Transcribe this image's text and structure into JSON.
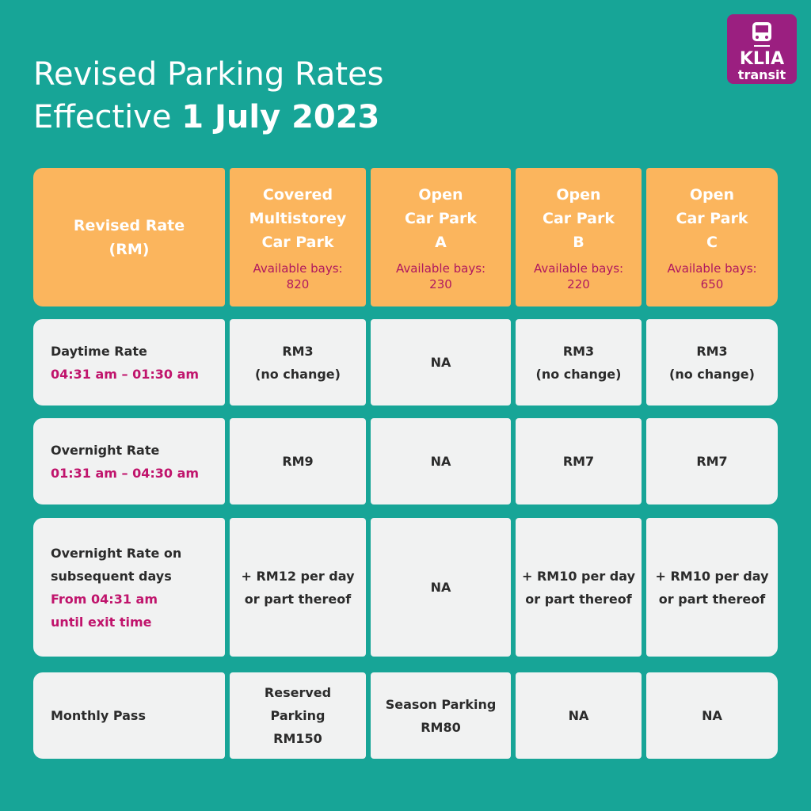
{
  "title": {
    "line1": "Revised Parking Rates",
    "line2_prefix": "Effective",
    "line2_bold": "1 July 2023"
  },
  "logo": {
    "name": "KLIA",
    "sub": "transit"
  },
  "table": {
    "header": [
      {
        "lines": [
          "Revised Rate",
          "(RM)"
        ]
      },
      {
        "lines": [
          "Covered",
          "Multistorey",
          "Car Park"
        ],
        "bays_label": "Available bays:",
        "bays": 820
      },
      {
        "lines": [
          "Open",
          "Car Park",
          "A"
        ],
        "bays_label": "Available bays:",
        "bays": 230
      },
      {
        "lines": [
          "Open",
          "Car Park",
          "B"
        ],
        "bays_label": "Available bays:",
        "bays": 220
      },
      {
        "lines": [
          "Open",
          "Car Park",
          "C"
        ],
        "bays_label": "Available bays:",
        "bays": 650
      }
    ],
    "rows": [
      {
        "label": [
          "Daytime Rate"
        ],
        "time": [
          "04:31 am – 01:30 am"
        ],
        "cells": [
          [
            "RM3",
            "(no change)"
          ],
          [
            "NA"
          ],
          [
            "RM3",
            "(no change)"
          ],
          [
            "RM3",
            "(no change)"
          ]
        ]
      },
      {
        "label": [
          "Overnight Rate"
        ],
        "time": [
          "01:31 am – 04:30 am"
        ],
        "cells": [
          [
            "RM9"
          ],
          [
            "NA"
          ],
          [
            "RM7"
          ],
          [
            "RM7"
          ]
        ]
      },
      {
        "label": [
          "Overnight Rate on",
          "subsequent days"
        ],
        "time": [
          "From 04:31 am",
          "until exit time"
        ],
        "cells": [
          [
            "+ RM12 per day",
            "or part thereof"
          ],
          [
            "NA"
          ],
          [
            "+ RM10 per day",
            "or part thereof"
          ],
          [
            "+ RM10 per day",
            "or part thereof"
          ]
        ]
      },
      {
        "label": [
          "Monthly Pass"
        ],
        "cells": [
          [
            "Reserved",
            "Parking",
            "RM150"
          ],
          [
            "Season Parking",
            "RM80"
          ],
          [
            "NA"
          ],
          [
            "NA"
          ]
        ]
      }
    ]
  }
}
